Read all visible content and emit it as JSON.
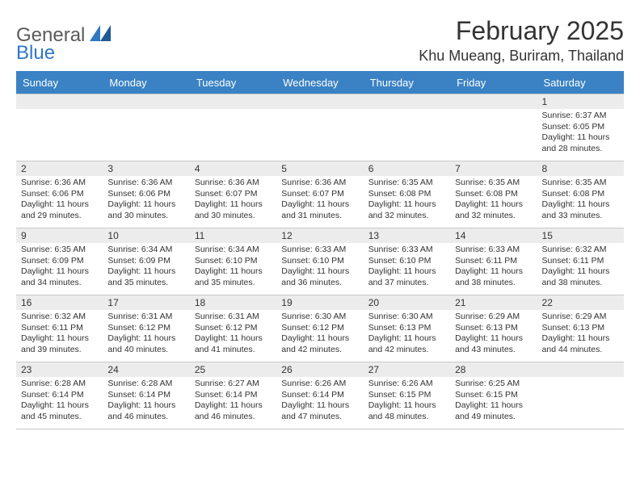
{
  "logo": {
    "text_general": "General",
    "text_blue": "Blue"
  },
  "title": "February 2025",
  "location": "Khu Mueang, Buriram, Thailand",
  "colors": {
    "header_bg": "#3a82c4",
    "header_text": "#ffffff",
    "daynum_bg": "#ececec",
    "border": "#c9c9c9",
    "text": "#333333",
    "logo_blue": "#2f78c3",
    "logo_gray": "#5a5a5a"
  },
  "dayNames": [
    "Sunday",
    "Monday",
    "Tuesday",
    "Wednesday",
    "Thursday",
    "Friday",
    "Saturday"
  ],
  "weeks": [
    [
      {
        "num": "",
        "sunrise": "",
        "sunset": "",
        "daylight": ""
      },
      {
        "num": "",
        "sunrise": "",
        "sunset": "",
        "daylight": ""
      },
      {
        "num": "",
        "sunrise": "",
        "sunset": "",
        "daylight": ""
      },
      {
        "num": "",
        "sunrise": "",
        "sunset": "",
        "daylight": ""
      },
      {
        "num": "",
        "sunrise": "",
        "sunset": "",
        "daylight": ""
      },
      {
        "num": "",
        "sunrise": "",
        "sunset": "",
        "daylight": ""
      },
      {
        "num": "1",
        "sunrise": "Sunrise: 6:37 AM",
        "sunset": "Sunset: 6:05 PM",
        "daylight": "Daylight: 11 hours and 28 minutes."
      }
    ],
    [
      {
        "num": "2",
        "sunrise": "Sunrise: 6:36 AM",
        "sunset": "Sunset: 6:06 PM",
        "daylight": "Daylight: 11 hours and 29 minutes."
      },
      {
        "num": "3",
        "sunrise": "Sunrise: 6:36 AM",
        "sunset": "Sunset: 6:06 PM",
        "daylight": "Daylight: 11 hours and 30 minutes."
      },
      {
        "num": "4",
        "sunrise": "Sunrise: 6:36 AM",
        "sunset": "Sunset: 6:07 PM",
        "daylight": "Daylight: 11 hours and 30 minutes."
      },
      {
        "num": "5",
        "sunrise": "Sunrise: 6:36 AM",
        "sunset": "Sunset: 6:07 PM",
        "daylight": "Daylight: 11 hours and 31 minutes."
      },
      {
        "num": "6",
        "sunrise": "Sunrise: 6:35 AM",
        "sunset": "Sunset: 6:08 PM",
        "daylight": "Daylight: 11 hours and 32 minutes."
      },
      {
        "num": "7",
        "sunrise": "Sunrise: 6:35 AM",
        "sunset": "Sunset: 6:08 PM",
        "daylight": "Daylight: 11 hours and 32 minutes."
      },
      {
        "num": "8",
        "sunrise": "Sunrise: 6:35 AM",
        "sunset": "Sunset: 6:08 PM",
        "daylight": "Daylight: 11 hours and 33 minutes."
      }
    ],
    [
      {
        "num": "9",
        "sunrise": "Sunrise: 6:35 AM",
        "sunset": "Sunset: 6:09 PM",
        "daylight": "Daylight: 11 hours and 34 minutes."
      },
      {
        "num": "10",
        "sunrise": "Sunrise: 6:34 AM",
        "sunset": "Sunset: 6:09 PM",
        "daylight": "Daylight: 11 hours and 35 minutes."
      },
      {
        "num": "11",
        "sunrise": "Sunrise: 6:34 AM",
        "sunset": "Sunset: 6:10 PM",
        "daylight": "Daylight: 11 hours and 35 minutes."
      },
      {
        "num": "12",
        "sunrise": "Sunrise: 6:33 AM",
        "sunset": "Sunset: 6:10 PM",
        "daylight": "Daylight: 11 hours and 36 minutes."
      },
      {
        "num": "13",
        "sunrise": "Sunrise: 6:33 AM",
        "sunset": "Sunset: 6:10 PM",
        "daylight": "Daylight: 11 hours and 37 minutes."
      },
      {
        "num": "14",
        "sunrise": "Sunrise: 6:33 AM",
        "sunset": "Sunset: 6:11 PM",
        "daylight": "Daylight: 11 hours and 38 minutes."
      },
      {
        "num": "15",
        "sunrise": "Sunrise: 6:32 AM",
        "sunset": "Sunset: 6:11 PM",
        "daylight": "Daylight: 11 hours and 38 minutes."
      }
    ],
    [
      {
        "num": "16",
        "sunrise": "Sunrise: 6:32 AM",
        "sunset": "Sunset: 6:11 PM",
        "daylight": "Daylight: 11 hours and 39 minutes."
      },
      {
        "num": "17",
        "sunrise": "Sunrise: 6:31 AM",
        "sunset": "Sunset: 6:12 PM",
        "daylight": "Daylight: 11 hours and 40 minutes."
      },
      {
        "num": "18",
        "sunrise": "Sunrise: 6:31 AM",
        "sunset": "Sunset: 6:12 PM",
        "daylight": "Daylight: 11 hours and 41 minutes."
      },
      {
        "num": "19",
        "sunrise": "Sunrise: 6:30 AM",
        "sunset": "Sunset: 6:12 PM",
        "daylight": "Daylight: 11 hours and 42 minutes."
      },
      {
        "num": "20",
        "sunrise": "Sunrise: 6:30 AM",
        "sunset": "Sunset: 6:13 PM",
        "daylight": "Daylight: 11 hours and 42 minutes."
      },
      {
        "num": "21",
        "sunrise": "Sunrise: 6:29 AM",
        "sunset": "Sunset: 6:13 PM",
        "daylight": "Daylight: 11 hours and 43 minutes."
      },
      {
        "num": "22",
        "sunrise": "Sunrise: 6:29 AM",
        "sunset": "Sunset: 6:13 PM",
        "daylight": "Daylight: 11 hours and 44 minutes."
      }
    ],
    [
      {
        "num": "23",
        "sunrise": "Sunrise: 6:28 AM",
        "sunset": "Sunset: 6:14 PM",
        "daylight": "Daylight: 11 hours and 45 minutes."
      },
      {
        "num": "24",
        "sunrise": "Sunrise: 6:28 AM",
        "sunset": "Sunset: 6:14 PM",
        "daylight": "Daylight: 11 hours and 46 minutes."
      },
      {
        "num": "25",
        "sunrise": "Sunrise: 6:27 AM",
        "sunset": "Sunset: 6:14 PM",
        "daylight": "Daylight: 11 hours and 46 minutes."
      },
      {
        "num": "26",
        "sunrise": "Sunrise: 6:26 AM",
        "sunset": "Sunset: 6:14 PM",
        "daylight": "Daylight: 11 hours and 47 minutes."
      },
      {
        "num": "27",
        "sunrise": "Sunrise: 6:26 AM",
        "sunset": "Sunset: 6:15 PM",
        "daylight": "Daylight: 11 hours and 48 minutes."
      },
      {
        "num": "28",
        "sunrise": "Sunrise: 6:25 AM",
        "sunset": "Sunset: 6:15 PM",
        "daylight": "Daylight: 11 hours and 49 minutes."
      },
      {
        "num": "",
        "sunrise": "",
        "sunset": "",
        "daylight": ""
      }
    ]
  ]
}
